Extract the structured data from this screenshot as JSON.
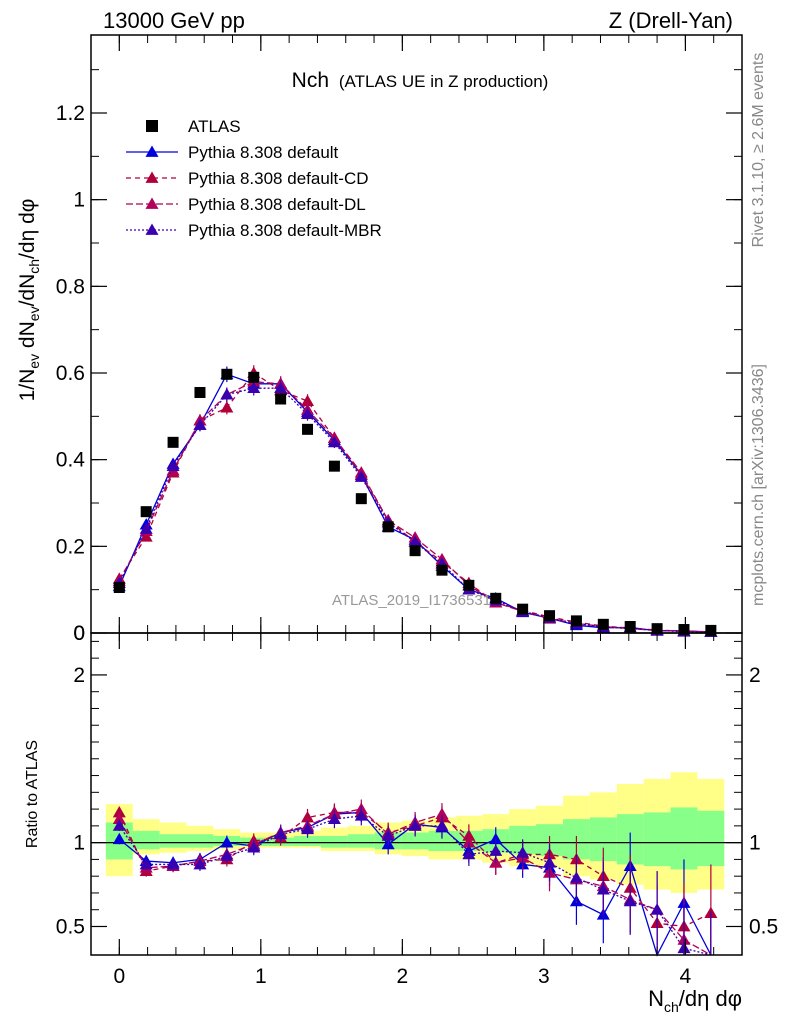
{
  "header": {
    "left": "13000 GeV pp",
    "right": "Z (Drell-Yan)"
  },
  "title": {
    "main": "Nch",
    "sub": "(ATLAS UE in Z production)"
  },
  "side_labels": {
    "rivet": "Rivet 3.1.10, ≥ 2.6M events",
    "mcplots": "mcplots.cern.ch [arXiv:1306.3436]"
  },
  "watermark": "ATLAS_2019_I1736531",
  "colors": {
    "data": "#000000",
    "default": "#0000dd",
    "cd": "#b0003c",
    "dl": "#b0005a",
    "mbr": "#3a00b0",
    "band_outer": "#ffff88",
    "band_inner": "#88ff88"
  },
  "chart_data": [
    {
      "type": "scatter",
      "panel": "main",
      "ylabel": "1/N_ev dN_ev/dN_ch/dη dφ",
      "xlim": [
        -0.2,
        4.4
      ],
      "ylim": [
        0,
        1.38
      ],
      "yticks": [
        "0",
        "0.2",
        "0.4",
        "0.6",
        "0.8",
        "1",
        "1.2"
      ],
      "x": [
        0.0,
        0.19,
        0.38,
        0.57,
        0.76,
        0.95,
        1.14,
        1.33,
        1.52,
        1.71,
        1.9,
        2.09,
        2.28,
        2.47,
        2.66,
        2.85,
        3.04,
        3.23,
        3.42,
        3.61,
        3.8,
        3.99,
        4.18
      ],
      "legend": [
        "ATLAS",
        "Pythia 8.308 default",
        "Pythia 8.308 default-CD",
        "Pythia 8.308 default-DL",
        "Pythia 8.308 default-MBR"
      ],
      "series": [
        {
          "name": "ATLAS",
          "values": [
            0.105,
            0.28,
            0.44,
            0.555,
            0.597,
            0.59,
            0.54,
            0.47,
            0.385,
            0.31,
            0.245,
            0.19,
            0.145,
            0.11,
            0.08,
            0.055,
            0.04,
            0.028,
            0.02,
            0.015,
            0.01,
            0.008,
            0.006
          ]
        },
        {
          "name": "Pythia 8.308 default",
          "values": [
            0.108,
            0.25,
            0.39,
            0.48,
            0.597,
            0.575,
            0.575,
            0.51,
            0.445,
            0.365,
            0.245,
            0.215,
            0.155,
            0.1,
            0.08,
            0.048,
            0.034,
            0.018,
            0.012,
            0.013,
            0.005,
            0.005,
            0.002
          ]
        },
        {
          "name": "Pythia 8.308 default-CD",
          "values": [
            0.125,
            0.222,
            0.37,
            0.49,
            0.52,
            0.6,
            0.56,
            0.535,
            0.45,
            0.365,
            0.26,
            0.21,
            0.165,
            0.115,
            0.07,
            0.052,
            0.037,
            0.025,
            0.016,
            0.011,
            0.007,
            0.004,
            0.003
          ]
        },
        {
          "name": "Pythia 8.308 default-DL",
          "values": [
            0.12,
            0.235,
            0.375,
            0.49,
            0.55,
            0.58,
            0.575,
            0.515,
            0.45,
            0.37,
            0.26,
            0.22,
            0.17,
            0.11,
            0.07,
            0.05,
            0.033,
            0.022,
            0.015,
            0.01,
            0.006,
            0.004,
            0.003
          ]
        },
        {
          "name": "Pythia 8.308 default-MBR",
          "values": [
            0.115,
            0.24,
            0.385,
            0.48,
            0.55,
            0.565,
            0.565,
            0.505,
            0.44,
            0.36,
            0.255,
            0.21,
            0.16,
            0.1,
            0.075,
            0.05,
            0.035,
            0.022,
            0.014,
            0.01,
            0.006,
            0.003,
            0.002
          ]
        }
      ]
    },
    {
      "type": "scatter",
      "panel": "ratio",
      "xlabel": "N_ch/dη dφ",
      "ylabel": "Ratio to ATLAS",
      "xlim": [
        -0.2,
        4.4
      ],
      "ylim": [
        0.33,
        2.25
      ],
      "yticks": [
        "0.5",
        "1",
        "2"
      ],
      "xticks": [
        "0",
        "1",
        "2",
        "3",
        "4"
      ],
      "x": [
        0.0,
        0.19,
        0.38,
        0.57,
        0.76,
        0.95,
        1.14,
        1.33,
        1.52,
        1.71,
        1.9,
        2.09,
        2.28,
        2.47,
        2.66,
        2.85,
        3.04,
        3.23,
        3.42,
        3.61,
        3.8,
        3.99,
        4.18
      ],
      "band_outer": [
        [
          0.8,
          1.23
        ],
        [
          0.93,
          1.14
        ],
        [
          0.94,
          1.12
        ],
        [
          0.95,
          1.1
        ],
        [
          0.96,
          1.08
        ],
        [
          0.97,
          1.06
        ],
        [
          0.97,
          1.06
        ],
        [
          0.97,
          1.07
        ],
        [
          0.95,
          1.09
        ],
        [
          0.95,
          1.1
        ],
        [
          0.93,
          1.12
        ],
        [
          0.92,
          1.13
        ],
        [
          0.9,
          1.15
        ],
        [
          0.9,
          1.16
        ],
        [
          0.88,
          1.17
        ],
        [
          0.86,
          1.2
        ],
        [
          0.85,
          1.22
        ],
        [
          0.8,
          1.28
        ],
        [
          0.78,
          1.3
        ],
        [
          0.75,
          1.35
        ],
        [
          0.72,
          1.38
        ],
        [
          0.7,
          1.42
        ],
        [
          0.72,
          1.38
        ]
      ],
      "band_inner": [
        [
          0.9,
          1.12
        ],
        [
          0.96,
          1.07
        ],
        [
          0.97,
          1.05
        ],
        [
          0.97,
          1.05
        ],
        [
          0.98,
          1.04
        ],
        [
          0.98,
          1.03
        ],
        [
          0.98,
          1.03
        ],
        [
          0.98,
          1.04
        ],
        [
          0.97,
          1.04
        ],
        [
          0.97,
          1.05
        ],
        [
          0.96,
          1.06
        ],
        [
          0.96,
          1.06
        ],
        [
          0.95,
          1.07
        ],
        [
          0.95,
          1.07
        ],
        [
          0.94,
          1.08
        ],
        [
          0.93,
          1.1
        ],
        [
          0.92,
          1.11
        ],
        [
          0.9,
          1.14
        ],
        [
          0.89,
          1.15
        ],
        [
          0.87,
          1.17
        ],
        [
          0.86,
          1.18
        ],
        [
          0.84,
          1.21
        ],
        [
          0.86,
          1.19
        ]
      ],
      "series": [
        {
          "name": "Pythia 8.308 default",
          "values": [
            1.02,
            0.89,
            0.88,
            0.9,
            1.0,
            0.98,
            1.06,
            1.09,
            1.17,
            1.18,
            0.99,
            1.11,
            1.09,
            0.95,
            1.02,
            0.87,
            0.85,
            0.65,
            0.57,
            0.86,
            0.3,
            0.64,
            0.3
          ]
        },
        {
          "name": "Pythia 8.308 default-CD",
          "values": [
            1.18,
            0.83,
            0.86,
            0.89,
            0.9,
            1.01,
            1.03,
            1.15,
            1.18,
            1.18,
            1.06,
            1.1,
            1.15,
            1.04,
            0.88,
            0.93,
            0.93,
            0.9,
            0.8,
            0.73,
            0.52,
            0.5,
            0.58
          ]
        },
        {
          "name": "Pythia 8.308 default-DL",
          "values": [
            1.14,
            0.85,
            0.86,
            0.89,
            0.93,
            0.99,
            1.06,
            1.1,
            1.17,
            1.2,
            1.05,
            1.12,
            1.17,
            1.0,
            0.88,
            0.91,
            0.82,
            0.78,
            0.74,
            0.66,
            0.6,
            0.42,
            0.3
          ]
        },
        {
          "name": "Pythia 8.308 default-MBR",
          "values": [
            1.1,
            0.87,
            0.87,
            0.87,
            0.92,
            0.97,
            1.05,
            1.08,
            1.14,
            1.16,
            1.04,
            1.1,
            1.1,
            0.93,
            0.95,
            0.94,
            0.88,
            0.79,
            0.72,
            0.65,
            0.6,
            0.37,
            0.3
          ]
        }
      ]
    }
  ]
}
